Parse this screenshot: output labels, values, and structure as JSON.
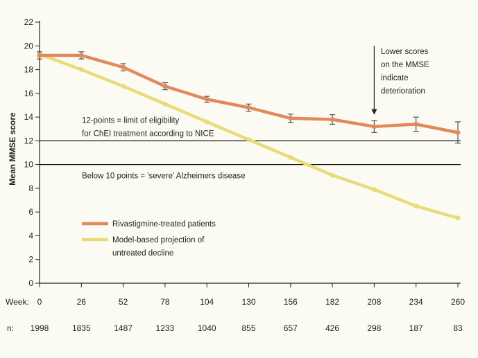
{
  "chart_data": {
    "type": "line",
    "title": "",
    "ylabel": "Mean MMSE score",
    "xlabel": "Week:",
    "ylim": [
      0,
      22
    ],
    "xlim": [
      0,
      260
    ],
    "yticks": [
      0,
      2,
      4,
      6,
      8,
      10,
      12,
      14,
      16,
      18,
      20,
      22
    ],
    "x": [
      0,
      26,
      52,
      78,
      104,
      130,
      156,
      182,
      208,
      234,
      260
    ],
    "x_tick_labels": [
      "0",
      "26",
      "52",
      "78",
      "104",
      "130",
      "156",
      "182",
      "208",
      "234",
      "260"
    ],
    "n_label": "n:",
    "n_values": [
      "1998",
      "1835",
      "1487",
      "1233",
      "1040",
      "855",
      "657",
      "426",
      "298",
      "187",
      "83"
    ],
    "grid": false,
    "series": [
      {
        "name": "Rivastigmine-treated patients",
        "color": "#e08a5c",
        "values": [
          19.2,
          19.2,
          18.2,
          16.6,
          15.5,
          14.8,
          13.9,
          13.8,
          13.2,
          13.4,
          12.7
        ],
        "error": [
          0.3,
          0.3,
          0.3,
          0.3,
          0.25,
          0.3,
          0.35,
          0.4,
          0.5,
          0.6,
          0.9
        ]
      },
      {
        "name": "Model-based projection of untreated decline",
        "legend_lines": [
          "Model-based projection of",
          "untreated decline"
        ],
        "color": "#e8dc7a",
        "values": [
          19.3,
          18.0,
          16.6,
          15.1,
          13.6,
          12.1,
          10.6,
          9.1,
          7.9,
          6.5,
          5.5
        ]
      }
    ],
    "reference_lines": [
      {
        "y": 12,
        "label_lines": [
          "12-points = limit of eligibility",
          "for ChEI treatment according to NICE"
        ]
      },
      {
        "y": 10,
        "label_lines": [
          "Below 10 points = 'severe' Alzheimers disease"
        ]
      }
    ],
    "annotation": {
      "text_lines": [
        "Lower scores",
        "on the MMSE",
        "indicate",
        "deterioration"
      ],
      "arrow_to": {
        "x": 208,
        "y": 14.2
      }
    },
    "legend_placement": "bottom-left"
  }
}
